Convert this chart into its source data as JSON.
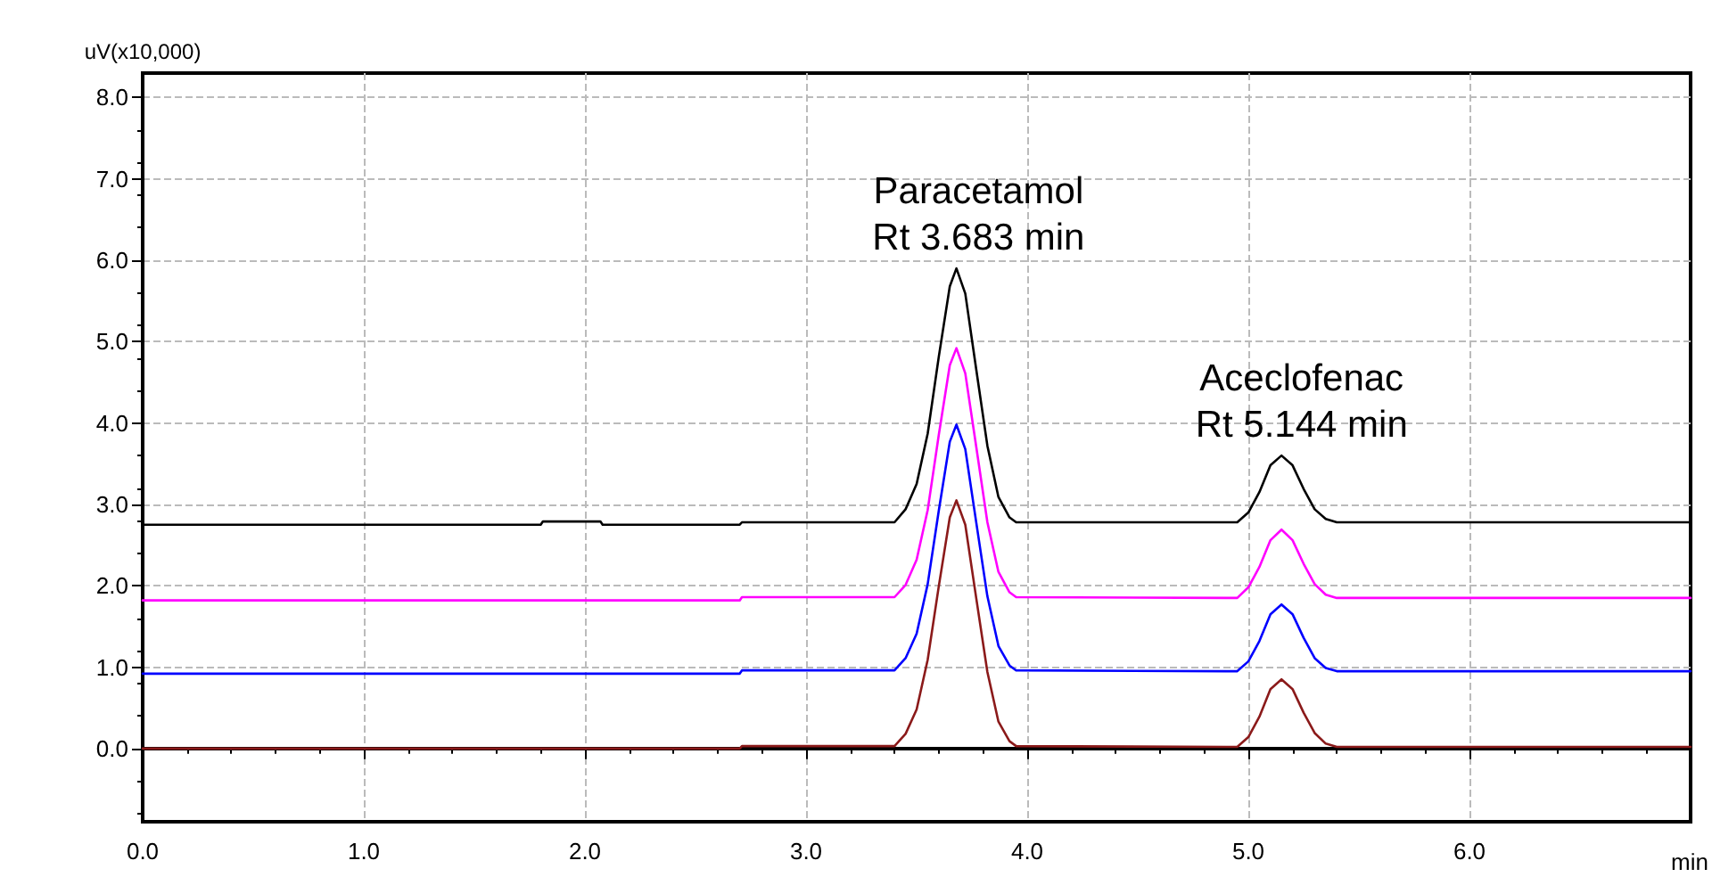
{
  "chart_data": {
    "type": "line",
    "xlabel": "min",
    "ylabel": "uV(x10,000)",
    "x": [
      0,
      1.8,
      1.81,
      2.07,
      2.08,
      2.7,
      2.71,
      3.4,
      3.45,
      3.5,
      3.55,
      3.6,
      3.65,
      3.68,
      3.72,
      3.77,
      3.82,
      3.87,
      3.92,
      3.95,
      4.9,
      4.95,
      5.0,
      5.05,
      5.1,
      5.15,
      5.2,
      5.25,
      5.3,
      5.35,
      5.4,
      7.0
    ],
    "series": [
      {
        "color": "#000000",
        "values": [
          2.75,
          2.75,
          2.79,
          2.79,
          2.75,
          2.75,
          2.78,
          2.78,
          2.94,
          3.25,
          3.87,
          4.81,
          5.68,
          5.9,
          5.59,
          4.65,
          3.72,
          3.09,
          2.84,
          2.78,
          2.78,
          2.78,
          2.9,
          3.15,
          3.48,
          3.6,
          3.48,
          3.19,
          2.94,
          2.82,
          2.78,
          2.78
        ]
      },
      {
        "color": "#ff00ff",
        "values": [
          1.82,
          1.82,
          1.82,
          1.82,
          1.82,
          1.82,
          1.86,
          1.86,
          2.01,
          2.32,
          2.93,
          3.85,
          4.71,
          4.92,
          4.61,
          3.7,
          2.78,
          2.17,
          1.92,
          1.86,
          1.85,
          1.85,
          1.98,
          2.23,
          2.56,
          2.69,
          2.56,
          2.27,
          2.02,
          1.89,
          1.85,
          1.85
        ]
      },
      {
        "color": "#0000ff",
        "values": [
          0.92,
          0.92,
          0.92,
          0.92,
          0.92,
          0.92,
          0.96,
          0.96,
          1.11,
          1.41,
          2.02,
          2.92,
          3.77,
          3.98,
          3.68,
          2.77,
          1.87,
          1.26,
          1.02,
          0.96,
          0.95,
          0.95,
          1.07,
          1.32,
          1.65,
          1.77,
          1.65,
          1.36,
          1.11,
          0.99,
          0.95,
          0.95
        ]
      },
      {
        "color": "#8b1a1a",
        "values": [
          0,
          0,
          0,
          0,
          0,
          0,
          0.03,
          0.03,
          0.18,
          0.48,
          1.09,
          1.99,
          2.84,
          3.05,
          2.75,
          1.84,
          0.94,
          0.33,
          0.09,
          0.03,
          0.02,
          0.02,
          0.14,
          0.39,
          0.73,
          0.85,
          0.73,
          0.44,
          0.19,
          0.06,
          0.02,
          0.02
        ]
      }
    ],
    "xlim": [
      0,
      7
    ],
    "ylim": [
      -0.9,
      8.3
    ],
    "xticks": [
      {
        "value": 0,
        "label": "0.0"
      },
      {
        "value": 1,
        "label": "1.0"
      },
      {
        "value": 2,
        "label": "2.0"
      },
      {
        "value": 3,
        "label": "3.0"
      },
      {
        "value": 4,
        "label": "4.0"
      },
      {
        "value": 5,
        "label": "5.0"
      },
      {
        "value": 6,
        "label": "6.0"
      }
    ],
    "yticks": [
      {
        "value": 0,
        "label": "0.0"
      },
      {
        "value": 1,
        "label": "1.0"
      },
      {
        "value": 2,
        "label": "2.0"
      },
      {
        "value": 3,
        "label": "3.0"
      },
      {
        "value": 4,
        "label": "4.0"
      },
      {
        "value": 5,
        "label": "5.0"
      },
      {
        "value": 6,
        "label": "6.0"
      },
      {
        "value": 7,
        "label": "7.0"
      },
      {
        "value": 8,
        "label": "8.0"
      }
    ],
    "annotations": [
      {
        "text": "Paracetamol\nRt 3.683 min",
        "x": 3.683,
        "y": 5.9
      },
      {
        "text": "Aceclofenac\nRt 5.144 min",
        "x": 5.144,
        "y": 3.6
      }
    ],
    "grid": true,
    "marker": "none",
    "line_style": "solid"
  }
}
